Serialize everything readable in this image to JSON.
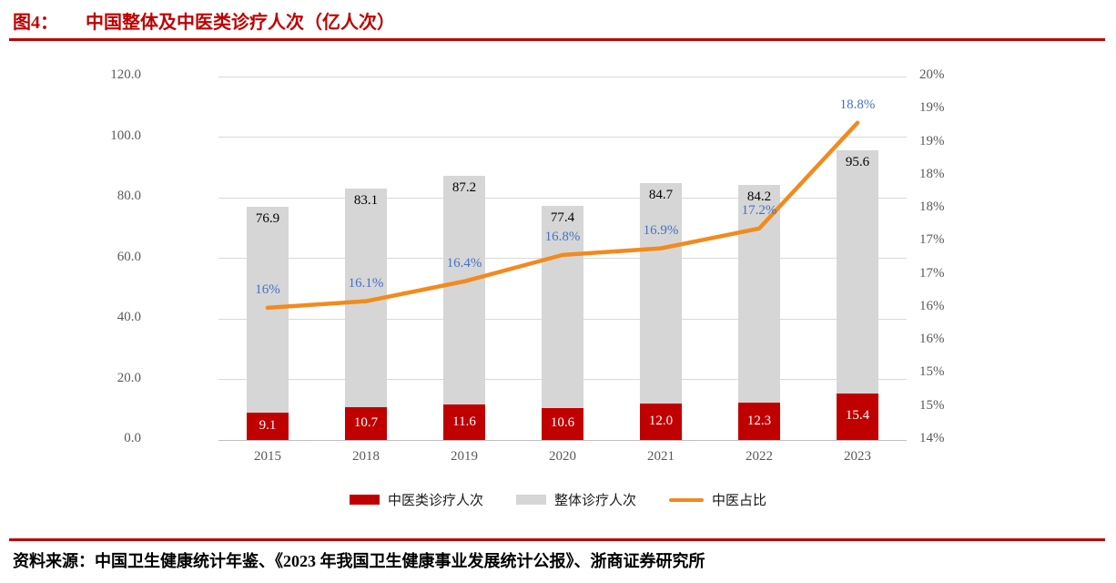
{
  "header": {
    "figure_label": "图4：",
    "title": "中国整体及中医类诊疗人次（亿人次）"
  },
  "footer": {
    "source": "资料来源：中国卫生健康统计年鉴、《2023 年我国卫生健康事业发展统计公报》、浙商证券研究所"
  },
  "colors": {
    "accent_red": "#C00000",
    "bar_red": "#C00000",
    "bar_gray": "#D6D6D6",
    "line_orange": "#F28A1E",
    "label_blue": "#4472C4",
    "axis_text": "#595959",
    "gridline": "#D9D9D9"
  },
  "chart_data": {
    "type": "combo",
    "title": "中国整体及中医类诊疗人次（亿人次）",
    "xlabel": "",
    "ylabel": "",
    "categories": [
      "2015",
      "2018",
      "2019",
      "2020",
      "2021",
      "2022",
      "2023"
    ],
    "series": [
      {
        "id": "tcm-visits",
        "name": "中医类诊疗人次",
        "type": "bar",
        "axis": "left",
        "color": "#C00000",
        "values": [
          9.1,
          10.7,
          11.6,
          10.6,
          12.0,
          12.3,
          15.4
        ],
        "labels": [
          "9.1",
          "10.7",
          "11.6",
          "10.6",
          "12.0",
          "12.3",
          "15.4"
        ],
        "label_color": "#FFFFFF",
        "label_position": "inside-center"
      },
      {
        "id": "total-visits",
        "name": "整体诊疗人次",
        "type": "bar",
        "axis": "left",
        "color": "#D6D6D6",
        "values": [
          76.9,
          83.1,
          87.2,
          77.4,
          84.7,
          84.2,
          95.6
        ],
        "labels": [
          "76.9",
          "83.1",
          "87.2",
          "77.4",
          "84.7",
          "84.2",
          "95.6"
        ],
        "label_color": "#000000",
        "label_position": "inside-end"
      },
      {
        "id": "tcm-share",
        "name": "中医占比",
        "type": "line",
        "axis": "right",
        "color": "#F28A1E",
        "values": [
          16.0,
          16.1,
          16.4,
          16.8,
          16.9,
          17.2,
          18.8
        ],
        "labels": [
          "16%",
          "16.1%",
          "16.4%",
          "16.8%",
          "16.9%",
          "17.2%",
          "18.8%"
        ],
        "label_color": "#4472C4",
        "label_position": "above"
      }
    ],
    "left_axis": {
      "min": 0,
      "max": 120,
      "step": 20,
      "tick_labels": [
        "0.0",
        "20.0",
        "40.0",
        "60.0",
        "80.0",
        "100.0",
        "120.0"
      ]
    },
    "right_axis": {
      "min": 14,
      "max": 19.5,
      "step": 0.5,
      "tick_labels": [
        "14%",
        "15%",
        "15%",
        "16%",
        "16%",
        "17%",
        "17%",
        "18%",
        "18%",
        "19%",
        "19%",
        "20%"
      ]
    },
    "grid": true,
    "legend_position": "bottom"
  }
}
